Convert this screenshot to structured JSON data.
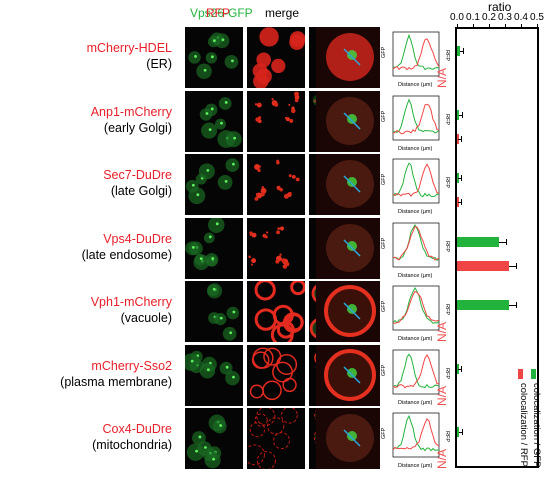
{
  "headers": {
    "gfp": "Vps26-GFP",
    "rfp": "RFP",
    "merge": "merge",
    "ratio": "ratio"
  },
  "colors": {
    "green": "#22b33c",
    "red": "#f04545",
    "cyan": "#29a8e0",
    "label_red": "#e8202a"
  },
  "rows": [
    {
      "marker": "mCherry-HDEL",
      "compartment": "(ER)",
      "na": "N/A",
      "gfp": 0.02,
      "rfp": null
    },
    {
      "marker": "Anp1-mCherry",
      "compartment": "(early Golgi)",
      "na": "",
      "gfp": 0.01,
      "rfp": 0.005
    },
    {
      "marker": "Sec7-DuDre",
      "compartment": "(late Golgi)",
      "na": "",
      "gfp": 0.005,
      "rfp": 0.004
    },
    {
      "marker": "Vps4-DuDre",
      "compartment": "(late endosome)",
      "na": "",
      "gfp": 0.27,
      "rfp": 0.33
    },
    {
      "marker": "Vph1-mCherry",
      "compartment": "(vacuole)",
      "na": "N/A",
      "gfp": 0.33,
      "rfp": null
    },
    {
      "marker": "mCherry-Sso2",
      "compartment": "(plasma membrane)",
      "na": "N/A",
      "gfp": 0.008,
      "rfp": null
    },
    {
      "marker": "Cox4-DuDre",
      "compartment": "(mitochondria)",
      "na": "N/A",
      "gfp": 0.01,
      "rfp": null
    }
  ],
  "plot_labels": {
    "xlabel": "Distance (µm)",
    "ylabel_left": "GFP",
    "ylabel_right": "RFP"
  },
  "chart_data": {
    "type": "bar",
    "orientation": "horizontal",
    "title": "ratio",
    "xlim": [
      0,
      0.5
    ],
    "xticks": [
      "0.0",
      "0.1",
      "0.2",
      "0.3",
      "0.4",
      "0.5"
    ],
    "categories": [
      "mCherry-HDEL",
      "Anp1-mCherry",
      "Sec7-DuDre",
      "Vps4-DuDre",
      "Vph1-mCherry",
      "mCherry-Sso2",
      "Cox4-DuDre"
    ],
    "series": [
      {
        "name": "colocalization / GFP",
        "values": [
          0.02,
          0.01,
          0.005,
          0.27,
          0.33,
          0.008,
          0.01
        ]
      },
      {
        "name": "colocalization / RFP",
        "values": [
          null,
          0.005,
          0.004,
          0.33,
          null,
          null,
          null
        ]
      }
    ]
  }
}
